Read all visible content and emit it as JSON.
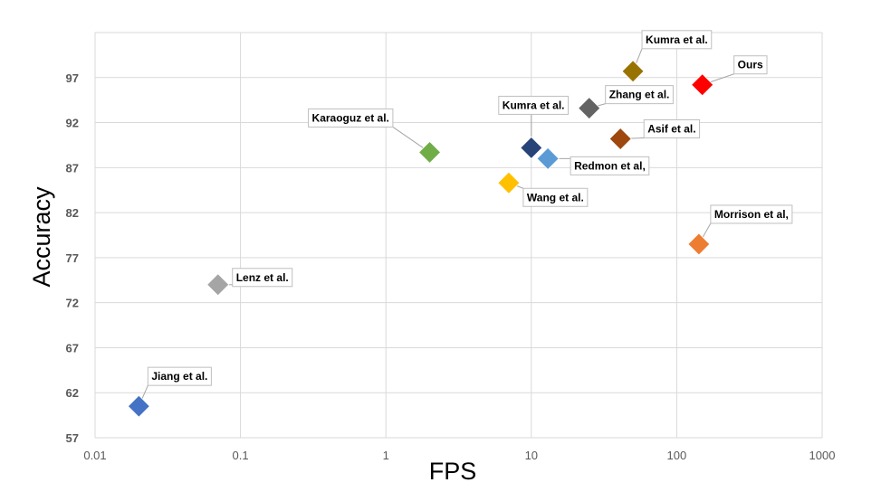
{
  "chart_data": {
    "type": "scatter",
    "xlabel": "FPS",
    "ylabel": "Accuracy",
    "x_scale": "log",
    "xlim": [
      0.01,
      1000
    ],
    "ylim": [
      57,
      102
    ],
    "x_ticks": [
      0.01,
      0.1,
      1,
      10,
      100,
      1000
    ],
    "x_tick_labels": [
      "0.01",
      "0.1",
      "1",
      "10",
      "100",
      "1000"
    ],
    "y_ticks": [
      57,
      62,
      67,
      72,
      77,
      82,
      87,
      92,
      97
    ],
    "y_tick_labels": [
      "57",
      "62",
      "67",
      "72",
      "77",
      "82",
      "87",
      "92",
      "97"
    ],
    "grid": true,
    "marker": "diamond",
    "points": [
      {
        "label": "Jiang et al.",
        "x": 0.02,
        "y": 60.5,
        "color": "#4472c4"
      },
      {
        "label": "Lenz et al.",
        "x": 0.07,
        "y": 74,
        "color": "#a5a5a5"
      },
      {
        "label": "Karaoguz et al.",
        "x": 2,
        "y": 88.7,
        "color": "#70ad47"
      },
      {
        "label": "Kumra et al.",
        "x": 10,
        "y": 89.2,
        "color": "#264478"
      },
      {
        "label": "Redmon et al,",
        "x": 13,
        "y": 88.0,
        "color": "#5b9bd5"
      },
      {
        "label": "Wang et al.",
        "x": 7,
        "y": 85.3,
        "color": "#ffc000"
      },
      {
        "label": "Zhang et al.",
        "x": 25,
        "y": 93.6,
        "color": "#636363"
      },
      {
        "label": "Kumra et al.",
        "x": 50,
        "y": 97.7,
        "color": "#997300"
      },
      {
        "label": "Asif et al.",
        "x": 41,
        "y": 90.2,
        "color": "#9e480e"
      },
      {
        "label": "Ours",
        "x": 150,
        "y": 96.2,
        "color": "#ff0000"
      },
      {
        "label": "Morrison et al,",
        "x": 142,
        "y": 78.5,
        "color": "#ed7d31"
      }
    ]
  }
}
